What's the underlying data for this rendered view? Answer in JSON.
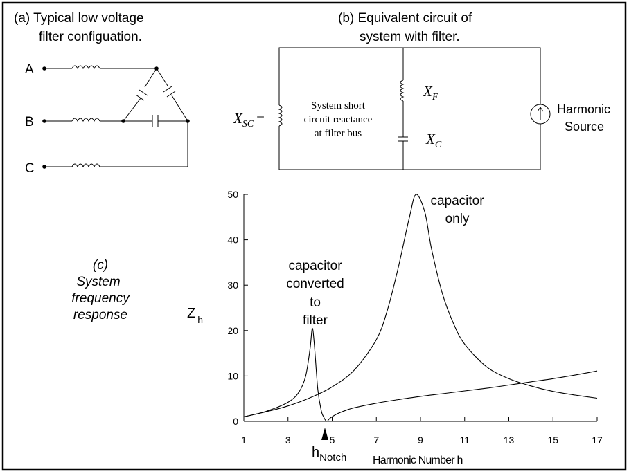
{
  "panel_a": {
    "title_line1": "(a) Typical low voltage",
    "title_line2": "filter configuation.",
    "phase_a": "A",
    "phase_b": "B",
    "phase_c": "C"
  },
  "panel_b": {
    "title_line1": "(b) Equivalent circuit of",
    "title_line2": "system with filter.",
    "xsc_main": "X",
    "xsc_sub": "SC",
    "xsc_eq": "=",
    "desc_line1": "System short",
    "desc_line2": "circuit reactance",
    "desc_line3": "at filter bus",
    "xf_main": "X",
    "xf_sub": "F",
    "xc_main": "X",
    "xc_sub": "C",
    "source_line1": "Harmonic",
    "source_line2": "Source"
  },
  "panel_c": {
    "label_line1": "(c)",
    "label_line2": "System",
    "label_line3": "frequency",
    "label_line4": "response",
    "annot_cap_only_1": "capacitor",
    "annot_cap_only_2": "only",
    "annot_filter_1": "capacitor",
    "annot_filter_2": "converted",
    "annot_filter_3": "to",
    "annot_filter_4": "filter",
    "notch_main": "h",
    "notch_sub": "Notch"
  },
  "chart_data": {
    "type": "line",
    "xlabel": "Harmonic Number  h",
    "ylabel_main": "Z",
    "ylabel_sub": "h",
    "xlim": [
      1,
      17
    ],
    "ylim": [
      0,
      50
    ],
    "xticks": [
      1,
      3,
      5,
      7,
      9,
      11,
      13,
      15,
      17
    ],
    "yticks": [
      0,
      10,
      20,
      30,
      40,
      50
    ],
    "grid": false,
    "series": [
      {
        "x": [
          1,
          2,
          3,
          4,
          5,
          6,
          7,
          7.5,
          8,
          8.5,
          8.8,
          9.2,
          9.5,
          10,
          10.5,
          11,
          12,
          13,
          14,
          15,
          16,
          17
        ],
        "y": [
          1,
          2.1,
          3.4,
          5.2,
          7.6,
          11.3,
          18,
          24.5,
          34,
          45,
          50,
          46,
          38,
          28,
          21.5,
          17,
          12,
          9.4,
          7.8,
          6.6,
          5.8,
          5.1
        ]
      },
      {
        "x": [
          1,
          2,
          3,
          3.5,
          3.8,
          4.0,
          4.1,
          4.2,
          4.35,
          4.5,
          4.6,
          4.75,
          4.9,
          5.2,
          5.6,
          6,
          7,
          8,
          9,
          10,
          11,
          12,
          13,
          14,
          15,
          16,
          17
        ],
        "y": [
          1,
          2.2,
          4.2,
          6.5,
          10,
          16,
          20.5,
          16.5,
          7,
          2.5,
          1.1,
          0,
          0.7,
          1.6,
          2.4,
          3.0,
          4.0,
          4.8,
          5.5,
          6.1,
          6.7,
          7.3,
          8.0,
          8.7,
          9.4,
          10.2,
          11.1
        ]
      }
    ]
  }
}
